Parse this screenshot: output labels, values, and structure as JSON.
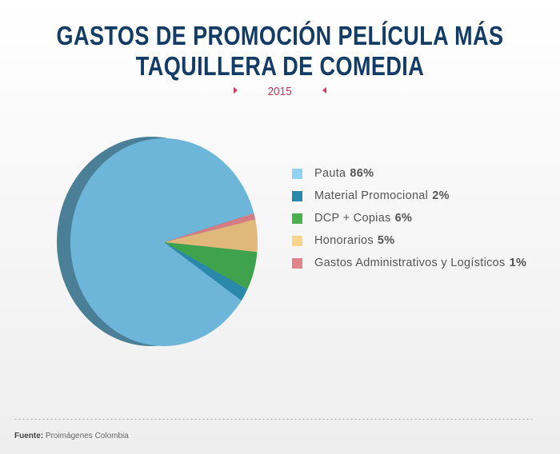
{
  "title_lines": [
    "GASTOS DE PROMOCIÓN PELÍCULA MÁS",
    "TAQUILLERA DE COMEDIA"
  ],
  "subtitle": "2015",
  "source_label": "Fuente:",
  "source_text": "Proimágenes Colombia",
  "chart_data": {
    "type": "pie",
    "categories": [
      "Pauta",
      "Material Promocional",
      "DCP + Copias",
      "Honorarios",
      "Gastos Administrativos y Logísticos"
    ],
    "values": [
      86,
      2,
      6,
      5,
      1
    ],
    "value_labels": [
      "86%",
      "2%",
      "6%",
      "5%",
      "1%"
    ],
    "colors": [
      "#6db6da",
      "#2a88ab",
      "#3fa34d",
      "#e0b97a",
      "#d77b83"
    ],
    "legend_colors": [
      "#8fd3f0",
      "#2a88ab",
      "#4caf50",
      "#f7d58c",
      "#e3848c"
    ],
    "legend_position": "right"
  }
}
